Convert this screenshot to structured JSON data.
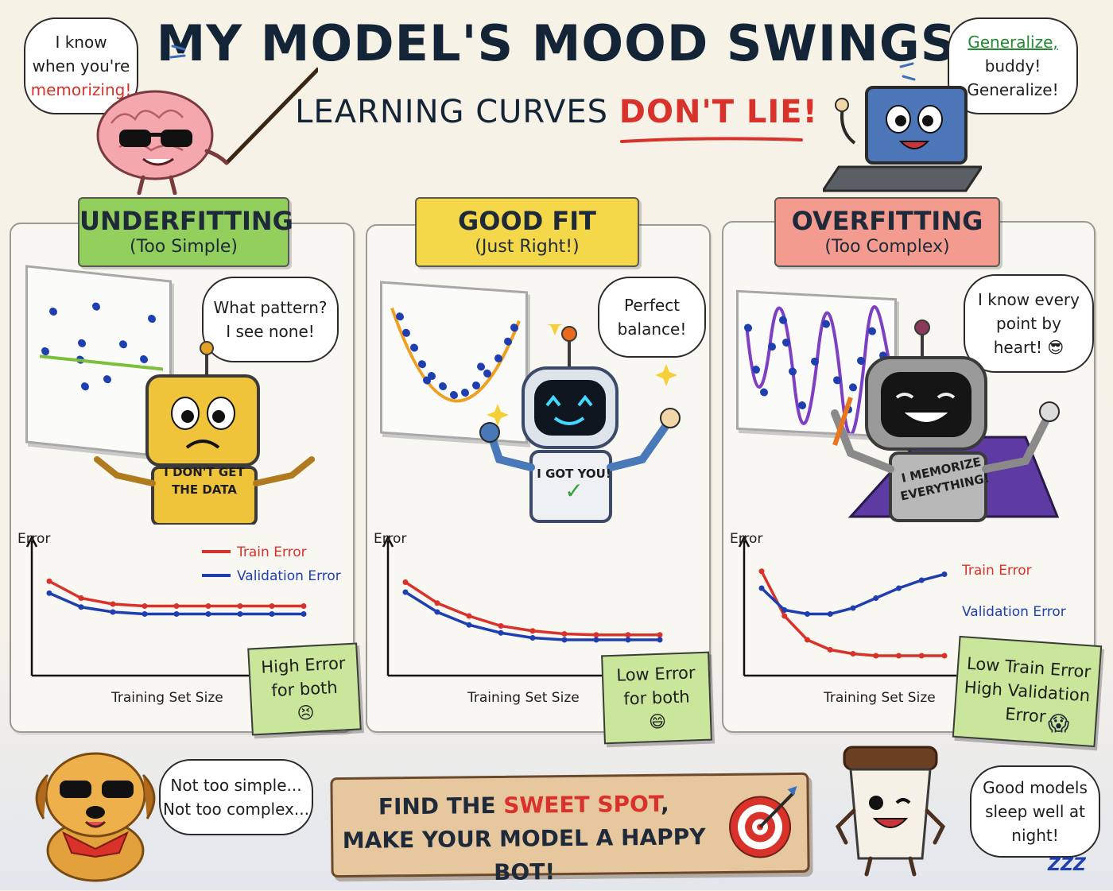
{
  "header": {
    "title": "MY MODEL'S MOOD SWINGS",
    "subtitle_main": "LEARNING CURVES ",
    "subtitle_accent": "DON'T LIE!"
  },
  "brain_bubble": {
    "line1": "I know",
    "line2": "when you're",
    "line3": "memorizing!"
  },
  "laptop_bubble": {
    "line1": "Generalize,",
    "line2": "buddy!",
    "line3": "Generalize!"
  },
  "panels": [
    {
      "title": "UNDERFITTING",
      "subtitle": "(Too Simple)",
      "bubble_line1": "What pattern?",
      "bubble_line2": "I see none!",
      "bot_label_line1": "I DON'T GET",
      "bot_label_line2": "THE DATA",
      "note_line1": "High Error",
      "note_line2": "for both",
      "head_color": "#93cf5c",
      "note_color": "#c9e69a"
    },
    {
      "title": "GOOD FIT",
      "subtitle": "(Just Right!)",
      "bubble_line1": "Perfect",
      "bubble_line2": "balance!",
      "bot_label_line1": "I GOT YOU!",
      "bot_label_line2": "✓",
      "note_line1": "Low Error",
      "note_line2": "for both",
      "head_color": "#f5d84a",
      "note_color": "#c9e69a"
    },
    {
      "title": "OVERFITTING",
      "subtitle": "(Too Complex)",
      "bubble_line1": "I know every",
      "bubble_line2": "point by",
      "bubble_line3": "heart! 😎",
      "bot_label_line1": "I MEMORIZE",
      "bot_label_line2": "EVERYTHING!",
      "note_line1": "Low Train Error",
      "note_line2": "High Validation",
      "note_line3": "Error",
      "head_color": "#f49b8f",
      "note_color": "#c9e69a"
    }
  ],
  "charts_common": {
    "ylabel": "Error",
    "xlabel": "Training Set Size",
    "train_label": "Train Error",
    "val_label": "Validation Error"
  },
  "chart_data": [
    {
      "type": "line",
      "title": "UNDERFITTING",
      "xlabel": "Training Set Size",
      "ylabel": "Error",
      "x": [
        1,
        2,
        3,
        4,
        5,
        6,
        7,
        8,
        9
      ],
      "series": [
        {
          "name": "Train Error",
          "color": "#d8322a",
          "values": [
            9.5,
            7.8,
            7.2,
            7.0,
            7.0,
            7.0,
            7.0,
            7.0,
            7.0
          ]
        },
        {
          "name": "Validation Error",
          "color": "#1f3fb0",
          "values": [
            8.3,
            6.9,
            6.4,
            6.2,
            6.2,
            6.2,
            6.2,
            6.2,
            6.2
          ]
        }
      ],
      "ylim": [
        0,
        12
      ],
      "grid": false,
      "legend": "top-right"
    },
    {
      "type": "line",
      "title": "GOOD FIT",
      "xlabel": "Training Set Size",
      "ylabel": "Error",
      "x": [
        1,
        2,
        3,
        4,
        5,
        6,
        7,
        8,
        9
      ],
      "series": [
        {
          "name": "Train Error",
          "color": "#d8322a",
          "values": [
            9.4,
            7.3,
            6.0,
            5.0,
            4.5,
            4.2,
            4.1,
            4.1,
            4.1
          ]
        },
        {
          "name": "Validation Error",
          "color": "#1f3fb0",
          "values": [
            8.4,
            6.4,
            5.1,
            4.3,
            3.8,
            3.6,
            3.6,
            3.6,
            3.6
          ]
        }
      ],
      "ylim": [
        0,
        12
      ],
      "grid": false,
      "legend": "none"
    },
    {
      "type": "line",
      "title": "OVERFITTING",
      "xlabel": "Training Set Size",
      "ylabel": "Error",
      "x": [
        1,
        2,
        3,
        4,
        5,
        6,
        7,
        8,
        9
      ],
      "series": [
        {
          "name": "Train Error",
          "color": "#d8322a",
          "values": [
            10.5,
            6.0,
            3.6,
            2.6,
            2.2,
            2.0,
            2.0,
            2.0,
            2.0
          ]
        },
        {
          "name": "Validation Error",
          "color": "#1f3fb0",
          "values": [
            8.8,
            6.6,
            6.2,
            6.2,
            6.8,
            7.8,
            8.8,
            9.6,
            10.2
          ]
        }
      ],
      "ylim": [
        0,
        12
      ],
      "grid": false,
      "legend": "right"
    }
  ],
  "dog_bubble": {
    "line1": "Not too simple...",
    "line2": "Not too complex..."
  },
  "banner": {
    "line1_a": "FIND THE ",
    "line1_accent": "SWEET SPOT",
    "line1_b": ",",
    "line2": "MAKE YOUR MODEL A HAPPY BOT!"
  },
  "cup_bubble": {
    "line1": "Good models",
    "line2": "sleep well at",
    "line3": "night!"
  },
  "zzz": "ZZZ"
}
